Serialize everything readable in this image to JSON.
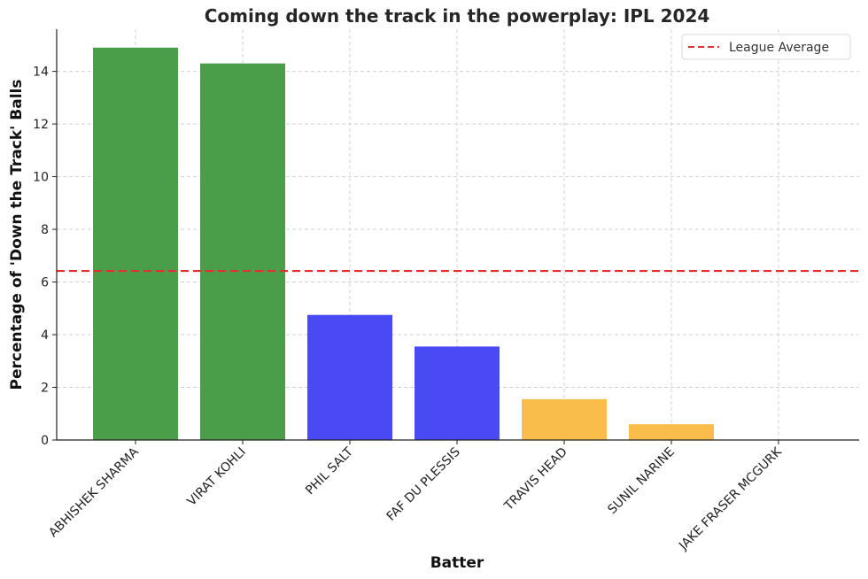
{
  "chart_data": {
    "type": "bar",
    "title": "Coming down the track in the powerplay: IPL 2024",
    "xlabel": "Batter",
    "ylabel": "Percentage of 'Down the Track' Balls",
    "categories": [
      "ABHISHEK SHARMA",
      "VIRAT KOHLI",
      "PHIL SALT",
      "FAF DU PLESSIS",
      "TRAVIS HEAD",
      "SUNIL NARINE",
      "JAKE FRASER MCGURK"
    ],
    "values": [
      14.9,
      14.3,
      4.75,
      3.55,
      1.55,
      0.6,
      0.0
    ],
    "bar_colors": [
      "#4a9e4a",
      "#4a9e4a",
      "#4a4af5",
      "#4a4af5",
      "#f8bd4a",
      "#f8bd4a",
      "#f8bd4a"
    ],
    "ylim": [
      0,
      15.6
    ],
    "yticks": [
      0,
      2,
      4,
      6,
      8,
      10,
      12,
      14
    ],
    "reference_line": {
      "label": "League Average",
      "value": 6.42,
      "color": "#e03030",
      "style": "dashed"
    },
    "legend": {
      "position": "top-right",
      "entries": [
        "League Average"
      ]
    },
    "grid": true
  }
}
